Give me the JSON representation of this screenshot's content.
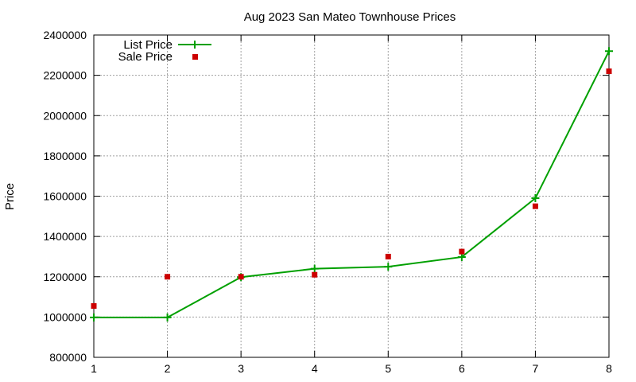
{
  "chart_data": {
    "type": "line",
    "title": "Aug 2023 San Mateo Townhouse Prices",
    "xlabel": "",
    "ylabel": "Price",
    "xlim": [
      1,
      8
    ],
    "ylim": [
      800000,
      2400000
    ],
    "x_ticks": [
      1,
      2,
      3,
      4,
      5,
      6,
      7,
      8
    ],
    "y_ticks": [
      800000,
      1000000,
      1200000,
      1400000,
      1600000,
      1800000,
      2000000,
      2200000,
      2400000
    ],
    "grid": true,
    "legend_position": "top-left",
    "x": [
      1,
      2,
      3,
      4,
      5,
      6,
      7,
      8
    ],
    "series": [
      {
        "name": "List Price",
        "style": "line-with-plus-markers",
        "color": "#00a000",
        "values": [
          998000,
          998000,
          1198000,
          1240000,
          1250000,
          1298000,
          1590000,
          2320000
        ]
      },
      {
        "name": "Sale Price",
        "style": "square-markers",
        "color": "#cc0000",
        "values": [
          1055000,
          1200000,
          1200000,
          1210000,
          1300000,
          1325000,
          1550000,
          2220000
        ]
      }
    ]
  }
}
